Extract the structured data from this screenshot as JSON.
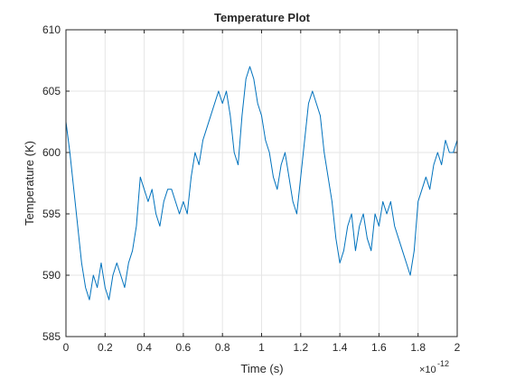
{
  "chart_data": {
    "type": "line",
    "title": "Temperature Plot",
    "x_label": "Time (s)",
    "y_label": "Temperature (K)",
    "x_multiplier": {
      "base": "×10",
      "exponent": "-12"
    },
    "color": "#0072bd",
    "grid": true,
    "xlim": [
      0,
      2e-12
    ],
    "ylim": [
      585,
      610
    ],
    "xticks": [
      0,
      {
        "value": 2e-13,
        "label": "0.2"
      },
      {
        "value": 4e-13,
        "label": "0.4"
      },
      {
        "value": 6e-13,
        "label": "0.6"
      },
      {
        "value": 8e-13,
        "label": "0.8"
      },
      {
        "value": 1e-12,
        "label": "1"
      },
      {
        "value": 1.2e-12,
        "label": "1.2"
      },
      {
        "value": 1.4e-12,
        "label": "1.4"
      },
      {
        "value": 1.6e-12,
        "label": "1.6"
      },
      {
        "value": 1.8e-12,
        "label": "1.8"
      },
      {
        "value": 2e-12,
        "label": "2"
      }
    ],
    "yticks": [
      585,
      590,
      595,
      600,
      605,
      610
    ],
    "x": [
      0,
      2e-14,
      4e-14,
      6e-14,
      8e-14,
      1e-13,
      1.2e-13,
      1.4e-13,
      1.6e-13,
      1.8e-13,
      2e-13,
      2.2e-13,
      2.4e-13,
      2.6e-13,
      2.8e-13,
      3e-13,
      3.2e-13,
      3.4e-13,
      3.6e-13,
      3.8e-13,
      4e-13,
      4.2e-13,
      4.4e-13,
      4.6e-13,
      4.8e-13,
      5e-13,
      5.2e-13,
      5.4e-13,
      5.6e-13,
      5.8e-13,
      6e-13,
      6.2e-13,
      6.4e-13,
      6.6e-13,
      6.8e-13,
      7e-13,
      7.2e-13,
      7.4e-13,
      7.6e-13,
      7.8e-13,
      8e-13,
      8.2e-13,
      8.4e-13,
      8.6e-13,
      8.8e-13,
      9e-13,
      9.2e-13,
      9.4e-13,
      9.6e-13,
      9.8e-13,
      1e-12,
      1.02e-12,
      1.04e-12,
      1.06e-12,
      1.08e-12,
      1.1e-12,
      1.12e-12,
      1.14e-12,
      1.16e-12,
      1.18e-12,
      1.2e-12,
      1.22e-12,
      1.24e-12,
      1.26e-12,
      1.28e-12,
      1.3e-12,
      1.32e-12,
      1.34e-12,
      1.36e-12,
      1.38e-12,
      1.4e-12,
      1.42e-12,
      1.44e-12,
      1.46e-12,
      1.48e-12,
      1.5e-12,
      1.52e-12,
      1.54e-12,
      1.56e-12,
      1.58e-12,
      1.6e-12,
      1.62e-12,
      1.64e-12,
      1.66e-12,
      1.68e-12,
      1.7e-12,
      1.72e-12,
      1.74e-12,
      1.76e-12,
      1.78e-12,
      1.8e-12,
      1.82e-12,
      1.84e-12,
      1.86e-12,
      1.88e-12,
      1.9e-12,
      1.92e-12,
      1.94e-12,
      1.96e-12,
      1.98e-12,
      2e-12
    ],
    "values": [
      602.5,
      600,
      597,
      594,
      591,
      589,
      588,
      590,
      589,
      591,
      589,
      588,
      590,
      591,
      590,
      589,
      591,
      592,
      594,
      598,
      597,
      596,
      597,
      595,
      594,
      596,
      597,
      597,
      596,
      595,
      596,
      595,
      598,
      600,
      599,
      601,
      602,
      603,
      604,
      605,
      604,
      605,
      603,
      600,
      599,
      603,
      606,
      607,
      606,
      604,
      603,
      601,
      600,
      598,
      597,
      599,
      600,
      598,
      596,
      595,
      598,
      601,
      604,
      605,
      604,
      603,
      600,
      598,
      596,
      593,
      591,
      592,
      594,
      595,
      592,
      594,
      595,
      593,
      592,
      595,
      594,
      596,
      595,
      596,
      594,
      593,
      592,
      591,
      590,
      592,
      596,
      597,
      598,
      597,
      599,
      600,
      599,
      601,
      600,
      600,
      601
    ]
  }
}
